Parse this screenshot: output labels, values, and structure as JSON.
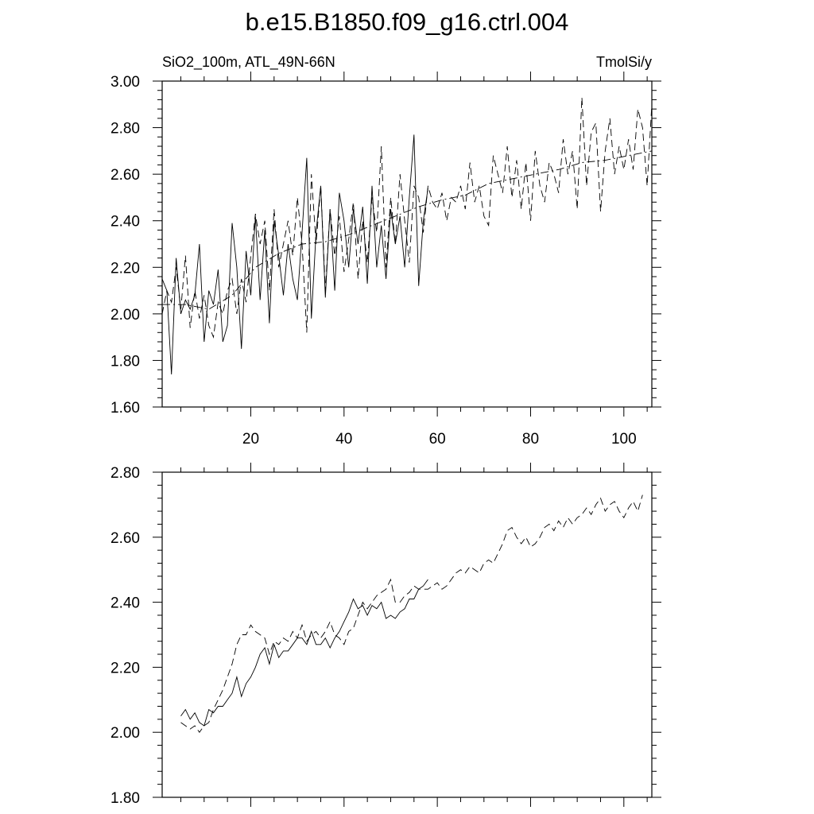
{
  "chart_data": [
    {
      "type": "line",
      "title": "b.e15.B1850.f09_g16.ctrl.004",
      "left_label": "SiO2_100m, ATL_49N-66N",
      "right_label": "TmolSi/y",
      "xlim": [
        1,
        106
      ],
      "ylim": [
        1.6,
        3.0
      ],
      "x_ticks": [
        "20",
        "40",
        "60",
        "80",
        "100"
      ],
      "y_ticks": [
        "1.60",
        "1.80",
        "2.00",
        "2.20",
        "2.40",
        "2.60",
        "2.80",
        "3.00"
      ],
      "grid": false,
      "series": [
        {
          "style": "solid",
          "x": [
            1,
            2,
            3,
            4,
            5,
            6,
            7,
            8,
            9,
            10,
            11,
            12,
            13,
            14,
            15,
            16,
            17,
            18,
            19,
            20,
            21,
            22,
            23,
            24,
            25,
            26,
            27,
            28,
            29,
            30,
            31,
            32,
            33,
            34,
            35,
            36,
            37,
            38,
            39,
            40,
            41,
            42,
            43,
            44,
            45,
            46,
            47,
            48,
            49,
            50,
            51,
            52,
            53,
            54,
            55,
            56,
            57,
            58
          ],
          "values": [
            2.15,
            2.1,
            1.74,
            2.24,
            2.0,
            2.06,
            2.02,
            2.08,
            2.3,
            1.88,
            2.1,
            2.04,
            2.19,
            1.88,
            1.95,
            2.39,
            2.2,
            1.85,
            2.27,
            2.08,
            2.42,
            2.06,
            2.36,
            1.96,
            2.4,
            2.25,
            2.08,
            2.3,
            2.15,
            2.06,
            2.35,
            2.67,
            1.98,
            2.35,
            2.55,
            2.07,
            2.45,
            2.1,
            2.52,
            2.4,
            2.2,
            2.45,
            2.3,
            2.46,
            2.13,
            2.55,
            2.2,
            2.38,
            2.15,
            2.45,
            2.3,
            2.42,
            2.2,
            2.5,
            2.77,
            2.12,
            2.4,
            2.54
          ]
        },
        {
          "style": "dashed",
          "x": [
            1,
            2,
            3,
            4,
            5,
            6,
            7,
            8,
            9,
            10,
            11,
            12,
            13,
            14,
            15,
            16,
            17,
            18,
            19,
            20,
            21,
            22,
            23,
            24,
            25,
            26,
            27,
            28,
            29,
            30,
            31,
            32,
            33,
            34,
            35,
            36,
            37,
            38,
            39,
            40,
            41,
            42,
            43,
            44,
            45,
            46,
            47,
            48,
            49,
            50,
            51,
            52,
            53,
            54,
            55,
            56,
            57,
            58,
            59,
            60,
            61,
            62,
            63,
            64,
            65,
            66,
            67,
            68,
            69,
            70,
            71,
            72,
            73,
            74,
            75,
            76,
            77,
            78,
            79,
            80,
            81,
            82,
            83,
            84,
            85,
            86,
            87,
            88,
            89,
            90,
            91,
            92,
            93,
            94,
            95,
            96,
            97,
            98,
            99,
            100,
            101,
            102,
            103,
            104,
            105,
            106
          ],
          "values": [
            2.0,
            2.1,
            2.05,
            2.2,
            2.02,
            2.25,
            1.94,
            2.1,
            1.98,
            2.08,
            1.95,
            1.9,
            2.05,
            2.0,
            2.1,
            2.15,
            2.0,
            2.15,
            2.05,
            2.25,
            2.43,
            2.3,
            2.4,
            2.1,
            2.45,
            2.2,
            2.3,
            2.4,
            2.25,
            2.5,
            2.3,
            1.92,
            2.6,
            2.3,
            2.55,
            2.1,
            2.45,
            2.25,
            2.42,
            2.18,
            2.32,
            2.48,
            2.15,
            2.4,
            2.22,
            2.5,
            2.35,
            2.72,
            2.2,
            2.5,
            2.3,
            2.6,
            2.4,
            2.22,
            2.55,
            2.5,
            2.35,
            2.55,
            2.48,
            2.45,
            2.52,
            2.4,
            2.5,
            2.48,
            2.55,
            2.45,
            2.65,
            2.48,
            2.55,
            2.42,
            2.38,
            2.68,
            2.6,
            2.52,
            2.72,
            2.5,
            2.66,
            2.45,
            2.65,
            2.4,
            2.7,
            2.55,
            2.48,
            2.65,
            2.6,
            2.52,
            2.75,
            2.6,
            2.7,
            2.45,
            2.93,
            2.55,
            2.78,
            2.82,
            2.44,
            2.7,
            2.84,
            2.6,
            2.72,
            2.62,
            2.75,
            2.62,
            2.88,
            2.8,
            2.55,
            2.9
          ]
        },
        {
          "style": "dash-dot",
          "x": [
            1,
            6,
            11,
            16,
            21,
            26,
            31,
            36,
            41,
            46,
            51,
            56,
            61,
            66,
            71,
            76,
            81,
            86,
            91,
            96,
            101,
            106
          ],
          "values": [
            2.04,
            2.04,
            2.02,
            2.08,
            2.2,
            2.26,
            2.3,
            2.31,
            2.34,
            2.38,
            2.42,
            2.46,
            2.49,
            2.51,
            2.56,
            2.58,
            2.6,
            2.62,
            2.65,
            2.66,
            2.68,
            2.7
          ]
        }
      ]
    },
    {
      "type": "line",
      "xlim": [
        1,
        106
      ],
      "ylim": [
        1.8,
        2.8
      ],
      "y_ticks": [
        "1.80",
        "2.00",
        "2.20",
        "2.40",
        "2.60",
        "2.80"
      ],
      "x_ticks": [
        "",
        "",
        "",
        "",
        ""
      ],
      "grid": false,
      "series": [
        {
          "style": "solid",
          "x": [
            5,
            6,
            7,
            8,
            9,
            10,
            11,
            12,
            13,
            14,
            15,
            16,
            17,
            18,
            19,
            20,
            21,
            22,
            23,
            24,
            25,
            26,
            27,
            28,
            29,
            30,
            31,
            32,
            33,
            34,
            35,
            36,
            37,
            38,
            39,
            40,
            41,
            42,
            43,
            44,
            45,
            46,
            47,
            48,
            49,
            50,
            51,
            52,
            53,
            54,
            55,
            56,
            57,
            58
          ],
          "values": [
            2.05,
            2.07,
            2.04,
            2.06,
            2.03,
            2.02,
            2.07,
            2.06,
            2.08,
            2.08,
            2.1,
            2.12,
            2.17,
            2.11,
            2.15,
            2.17,
            2.2,
            2.24,
            2.26,
            2.21,
            2.27,
            2.23,
            2.25,
            2.25,
            2.27,
            2.29,
            2.29,
            2.27,
            2.31,
            2.27,
            2.27,
            2.29,
            2.26,
            2.29,
            2.31,
            2.34,
            2.37,
            2.41,
            2.38,
            2.39,
            2.36,
            2.39,
            2.38,
            2.4,
            2.35,
            2.36,
            2.35,
            2.37,
            2.38,
            2.41,
            2.41,
            2.44,
            2.45,
            2.47
          ]
        },
        {
          "style": "dashed",
          "x": [
            5,
            6,
            7,
            8,
            9,
            10,
            11,
            12,
            13,
            14,
            15,
            16,
            17,
            18,
            19,
            20,
            21,
            22,
            23,
            24,
            25,
            26,
            27,
            28,
            29,
            30,
            31,
            32,
            33,
            34,
            35,
            36,
            37,
            38,
            39,
            40,
            41,
            42,
            43,
            44,
            45,
            46,
            47,
            48,
            49,
            50,
            51,
            52,
            53,
            54,
            55,
            56,
            57,
            58,
            59,
            60,
            61,
            62,
            63,
            64,
            65,
            66,
            67,
            68,
            69,
            70,
            71,
            72,
            73,
            74,
            75,
            76,
            77,
            78,
            79,
            80,
            81,
            82,
            83,
            84,
            85,
            86,
            87,
            88,
            89,
            90,
            91,
            92,
            93,
            94,
            95,
            96,
            97,
            98,
            99,
            100,
            101,
            102,
            103,
            104
          ],
          "values": [
            2.03,
            2.02,
            2.01,
            2.02,
            2.0,
            2.02,
            2.03,
            2.07,
            2.1,
            2.13,
            2.17,
            2.21,
            2.27,
            2.3,
            2.3,
            2.33,
            2.31,
            2.3,
            2.29,
            2.24,
            2.28,
            2.27,
            2.29,
            2.28,
            2.31,
            2.29,
            2.33,
            2.28,
            2.3,
            2.31,
            2.29,
            2.31,
            2.34,
            2.3,
            2.29,
            2.27,
            2.31,
            2.32,
            2.36,
            2.4,
            2.38,
            2.4,
            2.42,
            2.43,
            2.44,
            2.47,
            2.4,
            2.4,
            2.42,
            2.43,
            2.45,
            2.44,
            2.44,
            2.44,
            2.45,
            2.46,
            2.44,
            2.45,
            2.47,
            2.49,
            2.5,
            2.49,
            2.51,
            2.5,
            2.49,
            2.52,
            2.53,
            2.52,
            2.55,
            2.58,
            2.62,
            2.63,
            2.6,
            2.58,
            2.6,
            2.57,
            2.58,
            2.6,
            2.63,
            2.64,
            2.62,
            2.65,
            2.63,
            2.66,
            2.64,
            2.66,
            2.67,
            2.69,
            2.67,
            2.7,
            2.72,
            2.68,
            2.7,
            2.71,
            2.68,
            2.66,
            2.69,
            2.71,
            2.68,
            2.73
          ]
        }
      ]
    }
  ]
}
